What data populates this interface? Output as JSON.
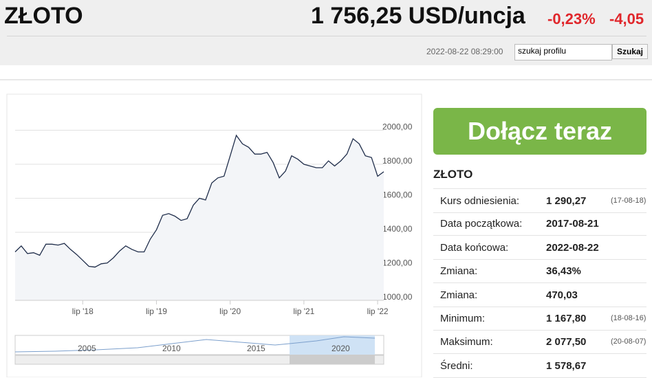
{
  "header": {
    "title": "ZŁOTO",
    "price": "1 756,25 USD/uncja",
    "change_pct": "-0,23%",
    "change_abs": "-4,05",
    "datetime": "2022-08-22 08:29:00",
    "search_placeholder": "szukaj profilu",
    "search_button": "Szukaj"
  },
  "join_button": "Dołącz teraz",
  "panel": {
    "title": "ZŁOTO",
    "rows": [
      {
        "label": "Kurs odniesienia:",
        "value": "1 290,27",
        "note": "(17-08-18)"
      },
      {
        "label": "Data początkowa:",
        "value": "2017-08-21"
      },
      {
        "label": "Data końcowa:",
        "value": "2022-08-22"
      },
      {
        "label": "Zmiana:",
        "value": "36,43%"
      },
      {
        "label": "Zmiana:",
        "value": "470,03"
      },
      {
        "label": "Minimum:",
        "value": "1 167,80",
        "note": "(18-08-16)"
      },
      {
        "label": "Maksimum:",
        "value": "2 077,50",
        "note": "(20-08-07)"
      },
      {
        "label": "Średni:",
        "value": "1 578,67"
      }
    ]
  },
  "chart_data": {
    "type": "line",
    "xlim": [
      0,
      60
    ],
    "ylim": [
      1000,
      2180
    ],
    "xticks": [
      {
        "value": 11,
        "label": "lip '18"
      },
      {
        "value": 23,
        "label": "lip '19"
      },
      {
        "value": 35,
        "label": "lip '20"
      },
      {
        "value": 47,
        "label": "lip '21"
      },
      {
        "value": 59,
        "label": "lip '22"
      }
    ],
    "yticks": [
      {
        "value": 1000,
        "label": "1000,00"
      },
      {
        "value": 1200,
        "label": "1200,00"
      },
      {
        "value": 1400,
        "label": "1400,00"
      },
      {
        "value": 1600,
        "label": "1600,00"
      },
      {
        "value": 1800,
        "label": "1800,00"
      },
      {
        "value": 2000,
        "label": "2000,00"
      }
    ],
    "grid": true,
    "series": [
      {
        "color": "#1f2d4a",
        "values": [
          1285,
          1320,
          1275,
          1280,
          1265,
          1330,
          1330,
          1325,
          1335,
          1300,
          1270,
          1235,
          1200,
          1195,
          1215,
          1220,
          1250,
          1290,
          1320,
          1300,
          1285,
          1285,
          1360,
          1415,
          1500,
          1510,
          1495,
          1470,
          1480,
          1560,
          1600,
          1590,
          1690,
          1720,
          1730,
          1850,
          1970,
          1920,
          1900,
          1860,
          1860,
          1870,
          1810,
          1720,
          1760,
          1850,
          1830,
          1800,
          1790,
          1780,
          1780,
          1820,
          1790,
          1820,
          1860,
          1950,
          1920,
          1850,
          1840,
          1730,
          1756
        ]
      }
    ]
  },
  "navigator_labels": [
    "2005",
    "2010",
    "2015",
    "2020"
  ]
}
